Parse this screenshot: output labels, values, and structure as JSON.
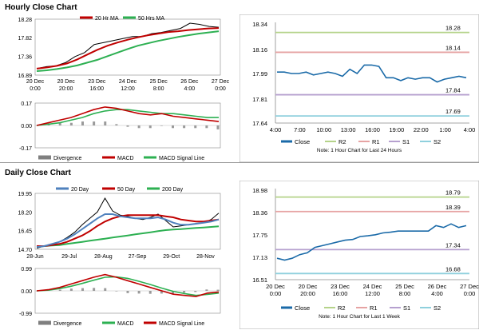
{
  "sections": {
    "hourly_title": "Hourly Close Chart",
    "daily_title": "Daily Close Chart"
  },
  "colors": {
    "close": "#1a6aa8",
    "red": "#c00000",
    "green": "#2db052",
    "blue": "#4f81bd",
    "grey": "#7f7f7f",
    "r2": "#b5d38a",
    "r1": "#e6a3a3",
    "s1": "#b6a0cf",
    "s2": "#8fd0dd",
    "band": "#e3e3e3"
  },
  "chart_data": [
    {
      "id": "hourly_price",
      "type": "line",
      "legend": [
        "20 Hr MA",
        "50 Hrs MA"
      ],
      "ytick_labels": [
        "18.28",
        "17.82",
        "17.36",
        "16.89"
      ],
      "xtick_labels": [
        [
          "20 Dec",
          "0:00"
        ],
        [
          "20 Dec",
          "20:00"
        ],
        [
          "23 Dec",
          "16:00"
        ],
        [
          "24 Dec",
          "12:00"
        ],
        [
          "25 Dec",
          "8:00"
        ],
        [
          "26 Dec",
          "4:00"
        ],
        [
          "27 Dec",
          "0:00"
        ]
      ],
      "ylim": [
        16.89,
        18.28
      ],
      "series": [
        {
          "name": "20 Hr MA",
          "y": [
            17.05,
            17.08,
            17.12,
            17.18,
            17.28,
            17.4,
            17.52,
            17.62,
            17.7,
            17.77,
            17.83,
            17.88,
            17.92,
            17.96,
            17.98,
            18.01,
            18.03,
            18.05,
            18.06
          ]
        },
        {
          "name": "50 Hrs MA",
          "y": [
            16.99,
            17.01,
            17.04,
            17.08,
            17.13,
            17.2,
            17.27,
            17.36,
            17.45,
            17.54,
            17.62,
            17.68,
            17.74,
            17.79,
            17.84,
            17.88,
            17.92,
            17.95,
            17.98
          ]
        },
        {
          "name": "Close",
          "y": [
            17.05,
            17.1,
            17.12,
            17.2,
            17.35,
            17.45,
            17.65,
            17.7,
            17.75,
            17.8,
            17.85,
            17.85,
            17.92,
            17.95,
            18.0,
            18.05,
            18.18,
            18.15,
            18.1,
            18.08
          ]
        }
      ]
    },
    {
      "id": "hourly_macd",
      "type": "line",
      "legend": [
        "Divergence",
        "MACD",
        "MACD Signal Line"
      ],
      "ytick_labels": [
        "0.17",
        "0.00",
        "-0.17"
      ],
      "ylim": [
        -0.17,
        0.17
      ],
      "series": [
        {
          "name": "MACD",
          "y": [
            0.0,
            0.02,
            0.04,
            0.06,
            0.09,
            0.12,
            0.14,
            0.13,
            0.11,
            0.09,
            0.08,
            0.09,
            0.07,
            0.06,
            0.05,
            0.04,
            0.03
          ]
        },
        {
          "name": "MACD Signal Line",
          "y": [
            0.0,
            0.01,
            0.02,
            0.04,
            0.06,
            0.09,
            0.11,
            0.12,
            0.12,
            0.11,
            0.1,
            0.09,
            0.09,
            0.08,
            0.07,
            0.06,
            0.06
          ]
        },
        {
          "name": "Divergence",
          "y": [
            0.0,
            0.01,
            0.02,
            0.02,
            0.03,
            0.03,
            0.03,
            0.01,
            -0.01,
            -0.02,
            -0.02,
            0.0,
            -0.02,
            -0.02,
            -0.02,
            -0.02,
            -0.03
          ]
        }
      ]
    },
    {
      "id": "hourly_24h",
      "type": "line",
      "ytick_labels": [
        "18.34",
        "18.16",
        "17.99",
        "17.81",
        "17.64"
      ],
      "ylim": [
        17.64,
        18.34
      ],
      "xtick_labels": [
        "4:00",
        "7:00",
        "10:00",
        "13:00",
        "16:00",
        "19:00",
        "22:00",
        "1:00",
        "4:00"
      ],
      "levels": [
        {
          "name": "R2",
          "value": 18.28,
          "label": "18.28"
        },
        {
          "name": "R1",
          "value": 18.14,
          "label": "18.14"
        },
        {
          "name": "S1",
          "value": 17.84,
          "label": "17.84"
        },
        {
          "name": "S2",
          "value": 17.69,
          "label": "17.69"
        }
      ],
      "close": [
        18.0,
        18.0,
        17.99,
        17.99,
        18.0,
        17.98,
        17.99,
        18.0,
        17.99,
        17.97,
        18.02,
        17.99,
        18.05,
        18.05,
        18.04,
        17.96,
        17.96,
        17.94,
        17.96,
        17.95,
        17.96,
        17.96,
        17.93,
        17.95,
        17.96,
        17.97,
        17.96
      ],
      "legend": [
        "Close",
        "R2",
        "R1",
        "S1",
        "S2"
      ],
      "note": "Note: 1 Hour Chart for Last 24 Hours"
    },
    {
      "id": "daily_price",
      "type": "line",
      "legend": [
        "20 Day",
        "50 Day",
        "200 Day"
      ],
      "ytick_labels": [
        "19.95",
        "18.20",
        "16.45",
        "14.70"
      ],
      "ylim": [
        14.7,
        19.95
      ],
      "xtick_labels": [
        "28-Jun",
        "29-Jul",
        "28-Aug",
        "27-Sep",
        "29-Oct",
        "28-Nov"
      ],
      "series": [
        {
          "name": "Close",
          "y": [
            14.8,
            15.0,
            15.1,
            15.4,
            15.8,
            16.3,
            17.0,
            17.6,
            18.2,
            19.5,
            18.3,
            17.9,
            17.8,
            17.6,
            17.5,
            17.7,
            18.0,
            17.4,
            16.8,
            16.9,
            17.0,
            17.1,
            17.2,
            17.5,
            18.1
          ]
        },
        {
          "name": "20 Day",
          "y": [
            14.9,
            15.0,
            15.2,
            15.4,
            15.7,
            16.1,
            16.6,
            17.1,
            17.6,
            18.0,
            18.0,
            17.8,
            17.7,
            17.6,
            17.6,
            17.6,
            17.7,
            17.5,
            17.2,
            17.0,
            17.0,
            17.1,
            17.2,
            17.3,
            17.5
          ]
        },
        {
          "name": "50 Day",
          "y": [
            15.0,
            15.0,
            15.1,
            15.2,
            15.4,
            15.7,
            16.0,
            16.4,
            16.9,
            17.3,
            17.6,
            17.8,
            17.9,
            17.9,
            17.9,
            17.9,
            17.9,
            17.8,
            17.7,
            17.5,
            17.4,
            17.3,
            17.3,
            17.4,
            17.5
          ]
        },
        {
          "name": "200 Day",
          "y": [
            14.95,
            15.0,
            15.05,
            15.1,
            15.2,
            15.3,
            15.4,
            15.5,
            15.6,
            15.7,
            15.8,
            15.9,
            16.0,
            16.1,
            16.2,
            16.3,
            16.4,
            16.5,
            16.55,
            16.6,
            16.65,
            16.7,
            16.75,
            16.8,
            16.85
          ]
        }
      ]
    },
    {
      "id": "daily_macd",
      "type": "line",
      "legend": [
        "Divergence",
        "MACD",
        "MACD Signal Line"
      ],
      "ytick_labels": [
        "0.99",
        "0.00",
        "-0.99"
      ],
      "ylim": [
        -0.99,
        0.99
      ],
      "series": [
        {
          "name": "MACD",
          "y": [
            0.0,
            0.05,
            0.15,
            0.3,
            0.45,
            0.6,
            0.72,
            0.6,
            0.45,
            0.3,
            0.15,
            0.0,
            -0.15,
            -0.2,
            -0.25,
            -0.1,
            -0.05
          ]
        },
        {
          "name": "MACD Signal Line",
          "y": [
            0.0,
            0.03,
            0.1,
            0.2,
            0.33,
            0.47,
            0.6,
            0.62,
            0.55,
            0.42,
            0.28,
            0.12,
            -0.02,
            -0.12,
            -0.2,
            -0.16,
            -0.1
          ]
        },
        {
          "name": "Divergence",
          "y": [
            0.0,
            0.02,
            0.05,
            0.1,
            0.12,
            0.13,
            0.12,
            -0.02,
            -0.1,
            -0.12,
            -0.13,
            -0.12,
            -0.13,
            -0.08,
            -0.05,
            0.06,
            0.05
          ]
        }
      ]
    },
    {
      "id": "daily_week",
      "type": "line",
      "ytick_labels": [
        "18.98",
        "18.36",
        "17.75",
        "17.13",
        "16.51"
      ],
      "ylim": [
        16.51,
        18.98
      ],
      "xtick_labels": [
        [
          "20 Dec",
          "0:00"
        ],
        [
          "20 Dec",
          "20:00"
        ],
        [
          "23 Dec",
          "16:00"
        ],
        [
          "24 Dec",
          "12:00"
        ],
        [
          "25 Dec",
          "8:00"
        ],
        [
          "26 Dec",
          "4:00"
        ],
        [
          "27 Dec",
          "0:00"
        ]
      ],
      "levels": [
        {
          "name": "R2",
          "value": 18.79,
          "label": "18.79"
        },
        {
          "name": "R1",
          "value": 18.39,
          "label": "18.39"
        },
        {
          "name": "S1",
          "value": 17.34,
          "label": "17.34"
        },
        {
          "name": "S2",
          "value": 16.68,
          "label": "16.68"
        }
      ],
      "close": [
        17.1,
        17.05,
        17.1,
        17.2,
        17.25,
        17.4,
        17.45,
        17.5,
        17.55,
        17.6,
        17.62,
        17.7,
        17.72,
        17.75,
        17.8,
        17.82,
        17.85,
        17.85,
        17.85,
        17.85,
        17.85,
        18.0,
        17.95,
        18.05,
        17.95,
        18.0
      ],
      "legend": [
        "Close",
        "R2",
        "R1",
        "S1",
        "S2"
      ],
      "note": "Note: 1 Hour Chart for Last 1 Week"
    }
  ]
}
